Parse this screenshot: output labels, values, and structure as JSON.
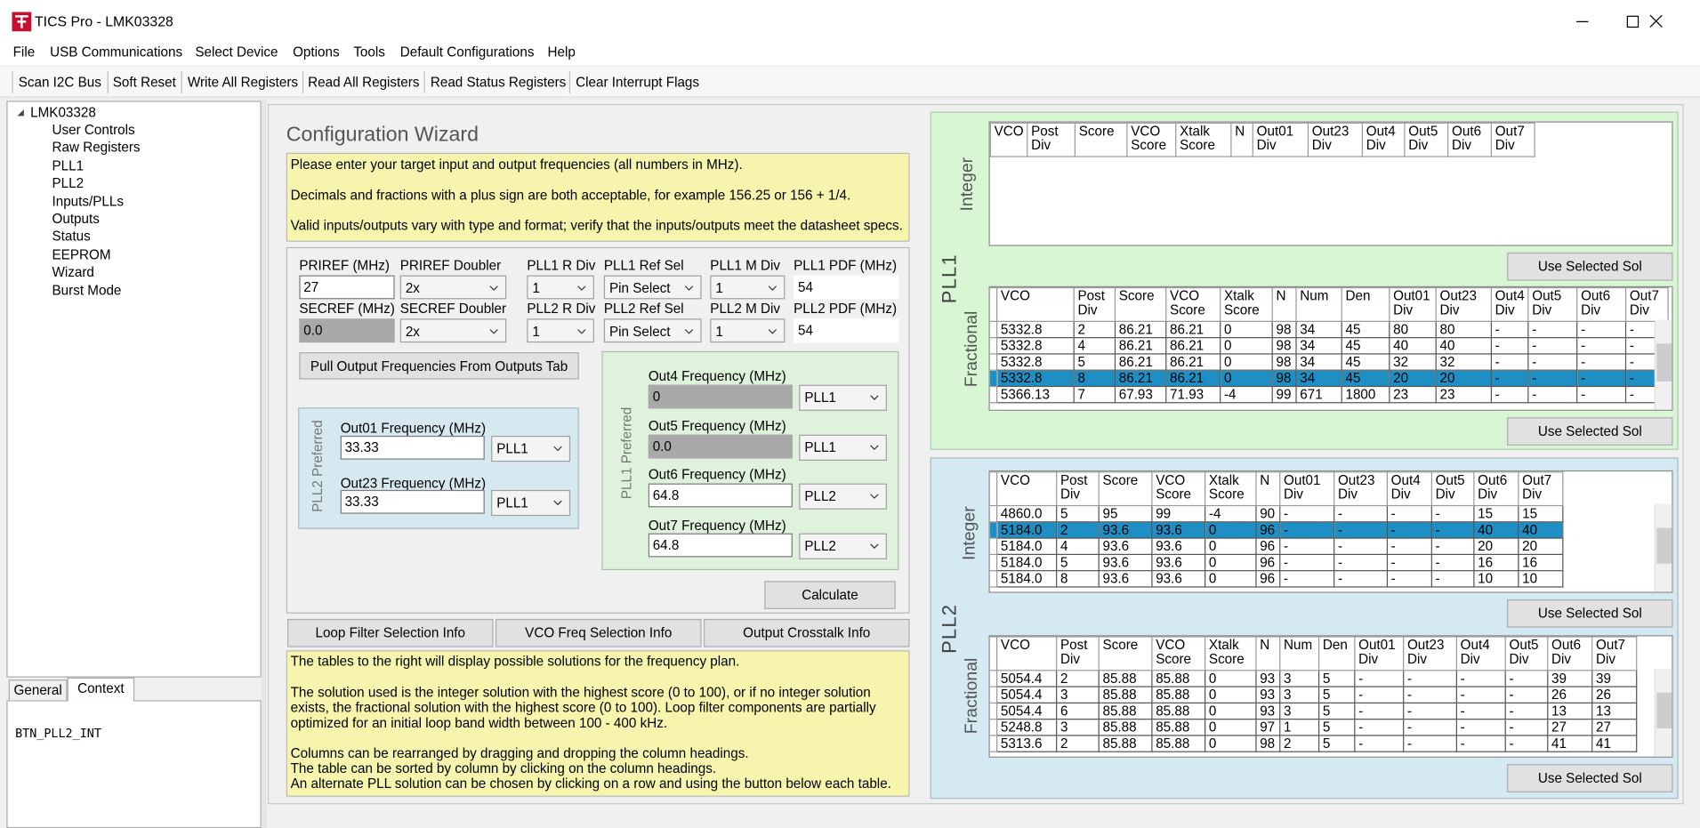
{
  "window": {
    "title": "TICS Pro - LMK03328"
  },
  "menu": [
    "File",
    "USB Communications",
    "Select Device",
    "Options",
    "Tools",
    "Default Configurations",
    "Help"
  ],
  "toolbar": [
    "Scan I2C Bus",
    "Soft Reset",
    "Write All Registers",
    "Read All Registers",
    "Read Status Registers",
    "Clear Interrupt Flags"
  ],
  "tree": {
    "root": "LMK03328",
    "items": [
      "User Controls",
      "Raw Registers",
      "PLL1",
      "PLL2",
      "Inputs/PLLs",
      "Outputs",
      "Status",
      "EEPROM",
      "Wizard",
      "Burst Mode"
    ]
  },
  "tabs": {
    "items": [
      "General",
      "Context"
    ],
    "selected": 1,
    "content": "BTN_PLL2_INT"
  },
  "wizard": {
    "title": "Configuration Wizard",
    "intro": [
      "Please enter your target input and output frequencies (all numbers in MHz).",
      "Decimals and fractions with a plus sign are both acceptable, for example 156.25 or 156 + 1/4.",
      "Valid inputs/outputs vary with type and format; verify that the inputs/outputs meet the datasheet specs."
    ],
    "fields": [
      [
        {
          "label": "PRIREF (MHz)",
          "value": "27"
        },
        {
          "label": "PRIREF Doubler",
          "value": "2x"
        },
        {
          "label": "PLL1 R Div",
          "value": "1"
        },
        {
          "label": "PLL1 Ref Sel",
          "value": "Pin Select"
        },
        {
          "label": "PLL1 M Div",
          "value": "1"
        },
        {
          "label": "PLL1 PDF (MHz)",
          "value": "54"
        }
      ],
      [
        {
          "label": "SECREF (MHz)",
          "value": "0.0",
          "disabled": true
        },
        {
          "label": "SECREF Doubler",
          "value": "2x"
        },
        {
          "label": "PLL2 R Div",
          "value": "1"
        },
        {
          "label": "PLL2 Ref Sel",
          "value": "Pin Select"
        },
        {
          "label": "PLL2 M Div",
          "value": "1"
        },
        {
          "label": "PLL2 PDF (MHz)",
          "value": "54"
        }
      ]
    ],
    "pull_button": "Pull Output Frequencies From Outputs Tab",
    "pll2_group": {
      "label": "PLL2 Preferred",
      "outputs": [
        {
          "label": "Out01 Frequency (MHz)",
          "value": "33.33",
          "pll": "PLL1"
        },
        {
          "label": "Out23 Frequency (MHz)",
          "value": "33.33",
          "pll": "PLL1"
        }
      ]
    },
    "pll1_group": {
      "label": "PLL1 Preferred",
      "outputs": [
        {
          "label": "Out4 Frequency (MHz)",
          "value": "0",
          "pll": "PLL1",
          "disabled": true
        },
        {
          "label": "Out5 Frequency (MHz)",
          "value": "0.0",
          "pll": "PLL1",
          "disabled": true
        },
        {
          "label": "Out6 Frequency (MHz)",
          "value": "64.8",
          "pll": "PLL2"
        },
        {
          "label": "Out7 Frequency (MHz)",
          "value": "64.8",
          "pll": "PLL2"
        }
      ]
    },
    "calculate": "Calculate",
    "info_buttons": [
      "Loop Filter Selection Info",
      "VCO Freq Selection Info",
      "Output Crosstalk Info"
    ],
    "notes": [
      "The tables to the right will display possible solutions for the frequency plan.",
      "The solution used is the integer solution with the highest score (0 to 100), or if no integer solution",
      "exists, the fractional solution with the highest score (0 to 100). Loop filter components are partially",
      "optimized for an initial loop band width between 100 - 400 kHz.",
      "Columns can be rearranged by dragging and dropping the column headings.",
      "The table can be sorted by column by clicking on the column headings.",
      "An alternate PLL solution can be chosen by clicking on a row and using the button below each table."
    ]
  },
  "solutions": [
    {
      "pll": "PLL1",
      "tables": [
        {
          "name": "Integer",
          "columns": [
            "VCO",
            "Post Div",
            "Score",
            "VCO Score",
            "Xtalk Score",
            "N",
            "Out01 Div",
            "Out23 Div",
            "Out4 Div",
            "Out5 Div",
            "Out6 Div",
            "Out7 Div"
          ],
          "rows": [],
          "button": "Use Selected Sol"
        },
        {
          "name": "Fractional",
          "columns": [
            "VCO",
            "Post Div",
            "Score",
            "VCO Score",
            "Xtalk Score",
            "N",
            "Num",
            "Den",
            "Out01 Div",
            "Out23 Div",
            "Out4 Div",
            "Out5 Div",
            "Out6 Div",
            "Out7 Div"
          ],
          "rows": [
            [
              "5332.8",
              "2",
              "86.21",
              "86.21",
              "0",
              "98",
              "34",
              "45",
              "80",
              "80",
              "-",
              "-",
              "-",
              "-"
            ],
            [
              "5332.8",
              "4",
              "86.21",
              "86.21",
              "0",
              "98",
              "34",
              "45",
              "40",
              "40",
              "-",
              "-",
              "-",
              "-"
            ],
            [
              "5332.8",
              "5",
              "86.21",
              "86.21",
              "0",
              "98",
              "34",
              "45",
              "32",
              "32",
              "-",
              "-",
              "-",
              "-"
            ],
            [
              "5332.8",
              "8",
              "86.21",
              "86.21",
              "0",
              "98",
              "34",
              "45",
              "20",
              "20",
              "-",
              "-",
              "-",
              "-"
            ],
            [
              "5366.13",
              "7",
              "67.93",
              "71.93",
              "-4",
              "99",
              "671",
              "1800",
              "23",
              "23",
              "-",
              "-",
              "-",
              "-"
            ]
          ],
          "selected_row": 3,
          "button": "Use Selected Sol"
        }
      ]
    },
    {
      "pll": "PLL2",
      "tables": [
        {
          "name": "Integer",
          "columns": [
            "VCO",
            "Post Div",
            "Score",
            "VCO Score",
            "Xtalk Score",
            "N",
            "Out01 Div",
            "Out23 Div",
            "Out4 Div",
            "Out5 Div",
            "Out6 Div",
            "Out7 Div"
          ],
          "rows": [
            [
              "4860.0",
              "5",
              "95",
              "99",
              "-4",
              "90",
              "-",
              "-",
              "-",
              "-",
              "15",
              "15"
            ],
            [
              "5184.0",
              "2",
              "93.6",
              "93.6",
              "0",
              "96",
              "-",
              "-",
              "-",
              "-",
              "40",
              "40"
            ],
            [
              "5184.0",
              "4",
              "93.6",
              "93.6",
              "0",
              "96",
              "-",
              "-",
              "-",
              "-",
              "20",
              "20"
            ],
            [
              "5184.0",
              "5",
              "93.6",
              "93.6",
              "0",
              "96",
              "-",
              "-",
              "-",
              "-",
              "16",
              "16"
            ],
            [
              "5184.0",
              "8",
              "93.6",
              "93.6",
              "0",
              "96",
              "-",
              "-",
              "-",
              "-",
              "10",
              "10"
            ]
          ],
          "selected_row": 1,
          "button": "Use Selected Sol"
        },
        {
          "name": "Fractional",
          "columns": [
            "VCO",
            "Post Div",
            "Score",
            "VCO Score",
            "Xtalk Score",
            "N",
            "Num",
            "Den",
            "Out01 Div",
            "Out23 Div",
            "Out4 Div",
            "Out5 Div",
            "Out6 Div",
            "Out7 Div"
          ],
          "rows": [
            [
              "5054.4",
              "2",
              "85.88",
              "85.88",
              "0",
              "93",
              "3",
              "5",
              "-",
              "-",
              "-",
              "-",
              "39",
              "39"
            ],
            [
              "5054.4",
              "3",
              "85.88",
              "85.88",
              "0",
              "93",
              "3",
              "5",
              "-",
              "-",
              "-",
              "-",
              "26",
              "26"
            ],
            [
              "5054.4",
              "6",
              "85.88",
              "85.88",
              "0",
              "93",
              "3",
              "5",
              "-",
              "-",
              "-",
              "-",
              "13",
              "13"
            ],
            [
              "5248.8",
              "3",
              "85.88",
              "85.88",
              "0",
              "97",
              "1",
              "5",
              "-",
              "-",
              "-",
              "-",
              "27",
              "27"
            ],
            [
              "5313.6",
              "2",
              "85.88",
              "85.88",
              "0",
              "98",
              "2",
              "5",
              "-",
              "-",
              "-",
              "-",
              "41",
              "41"
            ]
          ],
          "button": "Use Selected Sol"
        }
      ]
    }
  ]
}
